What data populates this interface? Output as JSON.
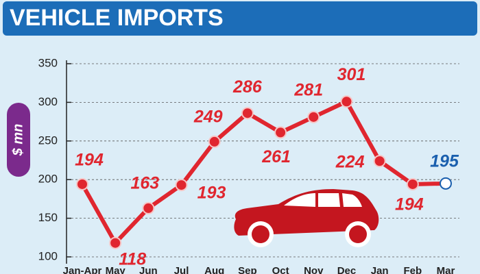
{
  "chart_data": {
    "type": "line",
    "title": "VEHICLE IMPORTS",
    "y_label": "$ mn",
    "categories": [
      "Jan-Apr",
      "May",
      "Jun",
      "Jul",
      "Aug",
      "Sep",
      "Oct",
      "Nov",
      "Dec",
      "Jan",
      "Feb",
      "Mar"
    ],
    "values": [
      194,
      118,
      163,
      193,
      249,
      286,
      261,
      281,
      301,
      224,
      194,
      195
    ],
    "color": "#e0262f",
    "point_colors": [
      "#e0262f",
      "#e0262f",
      "#e0262f",
      "#e0262f",
      "#e0262f",
      "#e0262f",
      "#e0262f",
      "#e0262f",
      "#e0262f",
      "#e0262f",
      "#e0262f",
      "#1a5fae"
    ],
    "ylim": [
      100,
      350
    ],
    "yticks": [
      100,
      150,
      200,
      250,
      300,
      350
    ],
    "grid": true
  }
}
